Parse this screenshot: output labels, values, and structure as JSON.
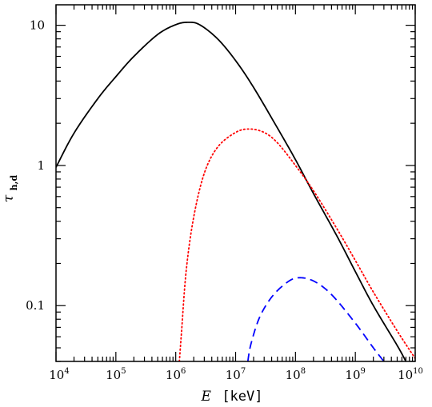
{
  "chart_data": {
    "type": "line",
    "x_scale": "log",
    "y_scale": "log",
    "xlim": [
      10000,
      10000000000
    ],
    "ylim": [
      0.04,
      14
    ],
    "grid": false,
    "xlabel_symbol": "E",
    "xlabel_unit": "[keV]",
    "ylabel_symbol": "τ",
    "ylabel_subscript": "h,d",
    "x_ticks": [
      {
        "value": 10000,
        "base": "10",
        "exp": "4"
      },
      {
        "value": 100000,
        "base": "10",
        "exp": "5"
      },
      {
        "value": 1000000,
        "base": "10",
        "exp": "6"
      },
      {
        "value": 10000000,
        "base": "10",
        "exp": "7"
      },
      {
        "value": 100000000,
        "base": "10",
        "exp": "8"
      },
      {
        "value": 1000000000,
        "base": "10",
        "exp": "9"
      },
      {
        "value": 10000000000,
        "base": "10",
        "exp": "10"
      }
    ],
    "y_ticks": [
      {
        "value": 0.1,
        "label": "0.1"
      },
      {
        "value": 1,
        "label": "1"
      },
      {
        "value": 10,
        "label": "10"
      }
    ],
    "series": [
      {
        "style": "solid",
        "color": "#000000",
        "x": [
          10000,
          20000,
          50000,
          100000,
          200000,
          500000,
          1000000,
          1600000,
          2500000,
          5000000,
          10000000,
          20000000,
          50000000,
          100000000,
          200000000,
          500000000,
          1000000000,
          2000000000,
          5000000000,
          7000000000
        ],
        "y": [
          0.97,
          1.7,
          3.0,
          4.3,
          6.0,
          8.6,
          10.1,
          10.5,
          10.1,
          8.0,
          5.6,
          3.6,
          1.85,
          1.1,
          0.63,
          0.31,
          0.175,
          0.1,
          0.052,
          0.04
        ]
      },
      {
        "style": "dotted",
        "color": "#ff0000",
        "x": [
          1150000,
          1250000,
          1500000,
          2000000,
          3000000,
          5000000,
          10000000,
          17000000,
          30000000,
          50000000,
          100000000,
          200000000,
          500000000,
          1000000000,
          2000000000,
          5000000000,
          10000000000
        ],
        "y": [
          0.04,
          0.065,
          0.18,
          0.43,
          0.88,
          1.35,
          1.72,
          1.82,
          1.72,
          1.45,
          1.0,
          0.66,
          0.35,
          0.21,
          0.125,
          0.066,
          0.042
        ]
      },
      {
        "style": "dashed",
        "color": "#0000ff",
        "x": [
          16000000,
          18000000,
          25000000,
          40000000,
          70000000,
          110000000,
          200000000,
          400000000,
          1000000000,
          2000000000,
          3000000000
        ],
        "y": [
          0.04,
          0.053,
          0.082,
          0.115,
          0.145,
          0.158,
          0.15,
          0.12,
          0.075,
          0.05,
          0.04
        ]
      }
    ]
  }
}
